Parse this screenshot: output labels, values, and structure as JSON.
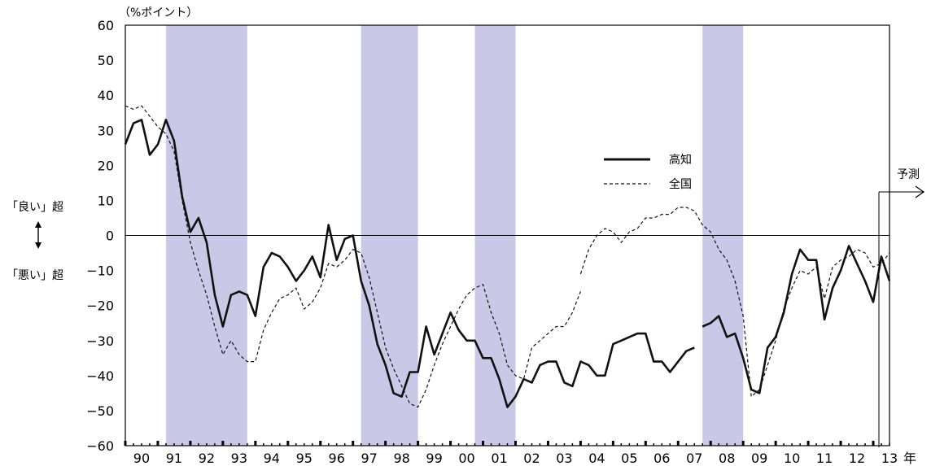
{
  "chart_data": {
    "type": "line",
    "title": "",
    "ylabel": "（%ポイント）",
    "xunit": "年",
    "ylim": [
      -60,
      60
    ],
    "yticks": [
      60,
      50,
      40,
      30,
      20,
      10,
      0,
      -10,
      -20,
      -30,
      -40,
      -50,
      -60
    ],
    "xlim": [
      1990,
      2013.5
    ],
    "xticklabels": [
      "90",
      "91",
      "92",
      "93",
      "94",
      "95",
      "96",
      "97",
      "98",
      "99",
      "00",
      "01",
      "02",
      "03",
      "04",
      "05",
      "06",
      "07",
      "08",
      "09",
      "10",
      "11",
      "12",
      "13"
    ],
    "side_labels": {
      "good": "「良い」超",
      "bad": "「悪い」超"
    },
    "forecast_label": "予測",
    "grid": false,
    "legend_position": "right-middle",
    "recessions": [
      [
        1991.25,
        1993.75
      ],
      [
        1997.25,
        1999.0
      ],
      [
        2000.75,
        2002.0
      ],
      [
        2007.75,
        2009.0
      ]
    ],
    "series": [
      {
        "name": "高知",
        "style": "solid",
        "color": "#111111",
        "segments": [
          [
            [
              1990.0,
              26
            ],
            [
              1990.25,
              32
            ],
            [
              1990.5,
              33
            ],
            [
              1990.75,
              23
            ],
            [
              1991.0,
              26
            ],
            [
              1991.25,
              33
            ],
            [
              1991.5,
              27
            ],
            [
              1991.75,
              11
            ],
            [
              1992.0,
              1
            ],
            [
              1992.25,
              5
            ],
            [
              1992.5,
              -2
            ],
            [
              1992.75,
              -17
            ],
            [
              1993.0,
              -26
            ],
            [
              1993.25,
              -17
            ],
            [
              1993.5,
              -16
            ],
            [
              1993.75,
              -17
            ],
            [
              1994.0,
              -23
            ],
            [
              1994.25,
              -9
            ],
            [
              1994.5,
              -5
            ],
            [
              1994.75,
              -6
            ],
            [
              1995.0,
              -9
            ],
            [
              1995.25,
              -13
            ],
            [
              1995.5,
              -10
            ],
            [
              1995.75,
              -6
            ],
            [
              1996.0,
              -12
            ],
            [
              1996.25,
              3
            ],
            [
              1996.5,
              -7
            ],
            [
              1996.75,
              -1
            ],
            [
              1997.0,
              0
            ],
            [
              1997.25,
              -13
            ],
            [
              1997.5,
              -20
            ],
            [
              1997.75,
              -31
            ],
            [
              1998.0,
              -37
            ],
            [
              1998.25,
              -45
            ],
            [
              1998.5,
              -46
            ],
            [
              1998.75,
              -39
            ],
            [
              1999.0,
              -39
            ],
            [
              1999.25,
              -26
            ],
            [
              1999.5,
              -34
            ],
            [
              1999.75,
              -28
            ],
            [
              2000.0,
              -22
            ],
            [
              2000.25,
              -27
            ],
            [
              2000.5,
              -30
            ],
            [
              2000.75,
              -30
            ],
            [
              2001.0,
              -35
            ],
            [
              2001.25,
              -35
            ],
            [
              2001.5,
              -41
            ],
            [
              2001.75,
              -49
            ],
            [
              2002.0,
              -46
            ],
            [
              2002.25,
              -41
            ],
            [
              2002.5,
              -42
            ],
            [
              2002.75,
              -37
            ],
            [
              2003.0,
              -36
            ],
            [
              2003.25,
              -36
            ],
            [
              2003.5,
              -42
            ],
            [
              2003.75,
              -43
            ],
            [
              2004.0,
              -36
            ],
            [
              2004.25,
              -37
            ],
            [
              2004.5,
              -40
            ],
            [
              2004.75,
              -40
            ],
            [
              2005.0,
              -31
            ],
            [
              2005.25,
              -30
            ],
            [
              2005.5,
              -29
            ],
            [
              2005.75,
              -28
            ],
            [
              2006.0,
              -28
            ],
            [
              2006.25,
              -36
            ],
            [
              2006.5,
              -36
            ],
            [
              2006.75,
              -39
            ],
            [
              2007.0,
              -36
            ],
            [
              2007.25,
              -33
            ],
            [
              2007.5,
              -32
            ]
          ],
          [
            [
              2007.75,
              -26
            ],
            [
              2008.0,
              -25
            ],
            [
              2008.25,
              -23
            ],
            [
              2008.5,
              -29
            ],
            [
              2008.75,
              -28
            ],
            [
              2009.0,
              -35
            ],
            [
              2009.25,
              -44
            ],
            [
              2009.5,
              -45
            ],
            [
              2009.75,
              -32
            ],
            [
              2010.0,
              -29
            ],
            [
              2010.25,
              -22
            ],
            [
              2010.5,
              -11
            ],
            [
              2010.75,
              -4
            ],
            [
              2011.0,
              -7
            ],
            [
              2011.25,
              -7
            ],
            [
              2011.5,
              -24
            ],
            [
              2011.75,
              -15
            ],
            [
              2012.0,
              -10
            ],
            [
              2012.25,
              -3
            ],
            [
              2012.5,
              -8
            ],
            [
              2012.75,
              -13
            ],
            [
              2013.0,
              -19
            ],
            [
              2013.25,
              -6
            ],
            [
              2013.5,
              -13
            ]
          ]
        ]
      },
      {
        "name": "全国",
        "style": "dashed",
        "color": "#111111",
        "segments": [
          [
            [
              1990.0,
              37
            ],
            [
              1990.25,
              36
            ],
            [
              1990.5,
              37
            ],
            [
              1990.75,
              34
            ],
            [
              1991.0,
              31
            ],
            [
              1991.25,
              29
            ],
            [
              1991.5,
              24
            ],
            [
              1991.75,
              10
            ],
            [
              1992.0,
              -2
            ],
            [
              1992.25,
              -10
            ],
            [
              1992.5,
              -17
            ],
            [
              1992.75,
              -26
            ],
            [
              1993.0,
              -34
            ],
            [
              1993.25,
              -30
            ],
            [
              1993.5,
              -34
            ],
            [
              1993.75,
              -36
            ],
            [
              1994.0,
              -36
            ],
            [
              1994.25,
              -27
            ],
            [
              1994.5,
              -22
            ],
            [
              1994.75,
              -18
            ],
            [
              1995.0,
              -17
            ],
            [
              1995.25,
              -15
            ],
            [
              1995.5,
              -21
            ],
            [
              1995.75,
              -19
            ],
            [
              1996.0,
              -15
            ],
            [
              1996.25,
              -8
            ],
            [
              1996.5,
              -9
            ],
            [
              1996.75,
              -7
            ],
            [
              1997.0,
              -4
            ],
            [
              1997.25,
              -5
            ],
            [
              1997.5,
              -12
            ],
            [
              1997.75,
              -22
            ],
            [
              1998.0,
              -32
            ],
            [
              1998.25,
              -38
            ],
            [
              1998.5,
              -43
            ],
            [
              1998.75,
              -48
            ],
            [
              1999.0,
              -49
            ],
            [
              1999.25,
              -44
            ],
            [
              1999.5,
              -37
            ],
            [
              1999.75,
              -31
            ],
            [
              2000.0,
              -26
            ],
            [
              2000.25,
              -21
            ],
            [
              2000.5,
              -17
            ],
            [
              2000.75,
              -15
            ],
            [
              2001.0,
              -14
            ],
            [
              2001.25,
              -22
            ],
            [
              2001.5,
              -28
            ],
            [
              2001.75,
              -37
            ],
            [
              2002.0,
              -40
            ],
            [
              2002.25,
              -41
            ],
            [
              2002.5,
              -32
            ],
            [
              2002.75,
              -30
            ],
            [
              2003.0,
              -28
            ],
            [
              2003.25,
              -26
            ],
            [
              2003.5,
              -26
            ],
            [
              2003.75,
              -22
            ],
            [
              2004.0,
              -16
            ]
          ],
          [
            [
              2004.0,
              -11
            ],
            [
              2004.25,
              -4
            ],
            [
              2004.5,
              0
            ],
            [
              2004.75,
              2
            ],
            [
              2005.0,
              1
            ],
            [
              2005.25,
              -2
            ],
            [
              2005.5,
              1
            ],
            [
              2005.75,
              2
            ],
            [
              2006.0,
              5
            ],
            [
              2006.25,
              5
            ],
            [
              2006.5,
              6
            ],
            [
              2006.75,
              6
            ],
            [
              2007.0,
              8
            ],
            [
              2007.25,
              8
            ],
            [
              2007.5,
              7
            ],
            [
              2007.75,
              3
            ],
            [
              2008.0,
              1
            ],
            [
              2008.25,
              -4
            ],
            [
              2008.5,
              -7
            ],
            [
              2008.75,
              -13
            ],
            [
              2009.0,
              -23
            ],
            [
              2009.25,
              -46
            ],
            [
              2009.5,
              -44
            ],
            [
              2009.75,
              -37
            ],
            [
              2010.0,
              -30
            ],
            [
              2010.25,
              -21
            ],
            [
              2010.5,
              -15
            ],
            [
              2010.75,
              -10
            ],
            [
              2011.0,
              -11
            ],
            [
              2011.25,
              -9
            ],
            [
              2011.5,
              -18
            ],
            [
              2011.75,
              -9
            ],
            [
              2012.0,
              -7
            ],
            [
              2012.25,
              -6
            ],
            [
              2012.5,
              -4
            ],
            [
              2012.75,
              -5
            ],
            [
              2013.0,
              -9
            ],
            [
              2013.25,
              -8
            ],
            [
              2013.5,
              -5
            ]
          ]
        ]
      }
    ]
  }
}
